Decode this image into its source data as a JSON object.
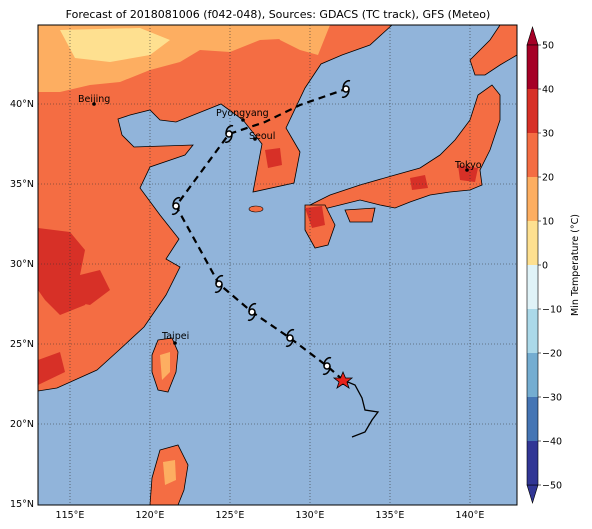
{
  "title": "Forecast of 2018081006 (f042-048), Sources: GDACS (TC track), GFS (Meteo)",
  "map": {
    "x_labels": [
      "115°E",
      "120°E",
      "125°E",
      "130°E",
      "135°E",
      "140°E"
    ],
    "y_labels": [
      "40°N",
      "35°N",
      "30°N",
      "25°N",
      "20°N",
      "15°N"
    ],
    "cities": [
      "Beijing",
      "Pyongyang",
      "Seoul",
      "Tokyo",
      "Taipei"
    ]
  },
  "colorbar": {
    "label": "Min Temperature (°C)",
    "ticks": [
      "50",
      "40",
      "30",
      "20",
      "10",
      "0",
      "−10",
      "−20",
      "−30",
      "−40",
      "−50"
    ]
  }
}
